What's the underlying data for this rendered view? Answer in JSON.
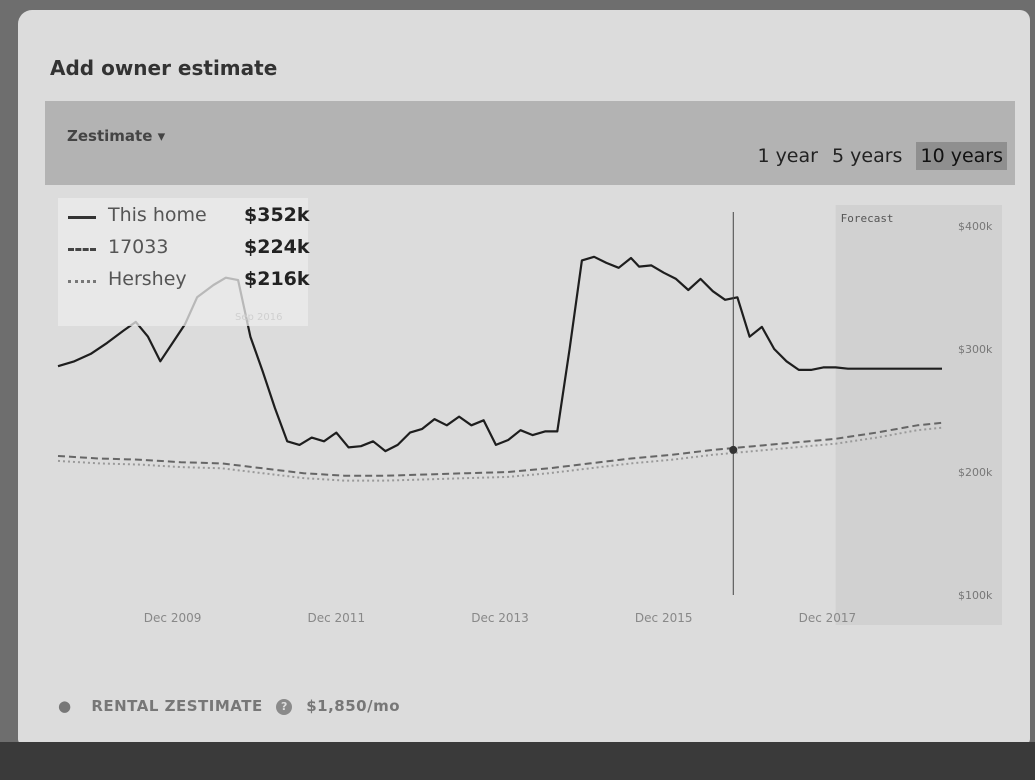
{
  "header": {
    "title": "Add owner estimate"
  },
  "toolbar": {
    "dropdown_label": "Zestimate",
    "ranges": [
      "1 year",
      "5 years",
      "10 years"
    ],
    "active_range": "10 years"
  },
  "legend": [
    {
      "name": "This home",
      "value": "$352k",
      "style": "solid"
    },
    {
      "name": "17033",
      "value": "$224k",
      "style": "dashed"
    },
    {
      "name": "Hershey",
      "value": "$216k",
      "style": "dotted"
    }
  ],
  "rental": {
    "label": "RENTAL ZESTIMATE",
    "value": "$1,850/mo"
  },
  "chart_data": {
    "type": "line",
    "forecast_label": "Forecast",
    "hover_label": "Sep 2016",
    "x_ticks": [
      "Dec 2009",
      "Dec 2011",
      "Dec 2013",
      "Dec 2015",
      "Dec 2017"
    ],
    "y_ticks": [
      "$400k",
      "$300k",
      "$200k",
      "$100k"
    ],
    "ylim": [
      100,
      400
    ],
    "x_start": 2008.5,
    "x_end": 2019.3,
    "forecast_start": 2018.0,
    "series": [
      {
        "name": "This home",
        "style": "solid",
        "x": [
          2008.5,
          2008.7,
          2008.9,
          2009.1,
          2009.3,
          2009.45,
          2009.6,
          2009.75,
          2009.9,
          2010.05,
          2010.2,
          2010.4,
          2010.55,
          2010.7,
          2010.85,
          2011.0,
          2011.15,
          2011.3,
          2011.45,
          2011.6,
          2011.75,
          2011.9,
          2012.05,
          2012.2,
          2012.35,
          2012.5,
          2012.65,
          2012.8,
          2012.95,
          2013.1,
          2013.25,
          2013.4,
          2013.55,
          2013.7,
          2013.85,
          2014.0,
          2014.15,
          2014.3,
          2014.45,
          2014.6,
          2014.75,
          2014.9,
          2015.05,
          2015.2,
          2015.35,
          2015.5,
          2015.6,
          2015.75,
          2015.9,
          2016.05,
          2016.2,
          2016.35,
          2016.5,
          2016.65,
          2016.8,
          2016.95,
          2017.1,
          2017.25,
          2017.4,
          2017.55,
          2017.7,
          2017.85,
          2018.0,
          2018.15,
          2018.3,
          2018.5,
          2018.8,
          2019.1,
          2019.3
        ],
        "values": [
          286,
          290,
          296,
          305,
          315,
          322,
          310,
          290,
          305,
          320,
          342,
          352,
          358,
          356,
          310,
          282,
          252,
          225,
          222,
          228,
          225,
          232,
          220,
          221,
          225,
          217,
          222,
          232,
          235,
          243,
          238,
          245,
          238,
          242,
          222,
          226,
          234,
          230,
          233,
          233,
          300,
          372,
          375,
          370,
          366,
          374,
          367,
          368,
          362,
          357,
          348,
          357,
          347,
          340,
          342,
          310,
          318,
          300,
          290,
          283,
          283,
          285,
          285,
          284,
          284,
          284,
          284,
          284,
          284
        ]
      },
      {
        "name": "17033",
        "style": "dashed",
        "x": [
          2008.5,
          2009.0,
          2009.5,
          2010.0,
          2010.5,
          2011.0,
          2011.5,
          2012.0,
          2012.5,
          2013.0,
          2013.5,
          2014.0,
          2014.5,
          2015.0,
          2015.5,
          2016.0,
          2016.5,
          2017.0,
          2017.5,
          2018.0,
          2018.5,
          2019.0,
          2019.3
        ],
        "values": [
          213,
          211,
          210,
          208,
          207,
          203,
          199,
          197,
          197,
          198,
          199,
          200,
          203,
          207,
          211,
          214,
          218,
          221,
          224,
          227,
          232,
          238,
          240
        ]
      },
      {
        "name": "Hershey",
        "style": "dotted",
        "x": [
          2008.5,
          2009.0,
          2009.5,
          2010.0,
          2010.5,
          2011.0,
          2011.5,
          2012.0,
          2012.5,
          2013.0,
          2013.5,
          2014.0,
          2014.5,
          2015.0,
          2015.5,
          2016.0,
          2016.5,
          2017.0,
          2017.5,
          2018.0,
          2018.5,
          2019.0,
          2019.3
        ],
        "values": [
          209,
          207,
          206,
          204,
          203,
          199,
          195,
          193,
          193,
          194,
          195,
          196,
          199,
          203,
          207,
          210,
          214,
          217,
          220,
          223,
          228,
          234,
          236
        ]
      }
    ]
  }
}
